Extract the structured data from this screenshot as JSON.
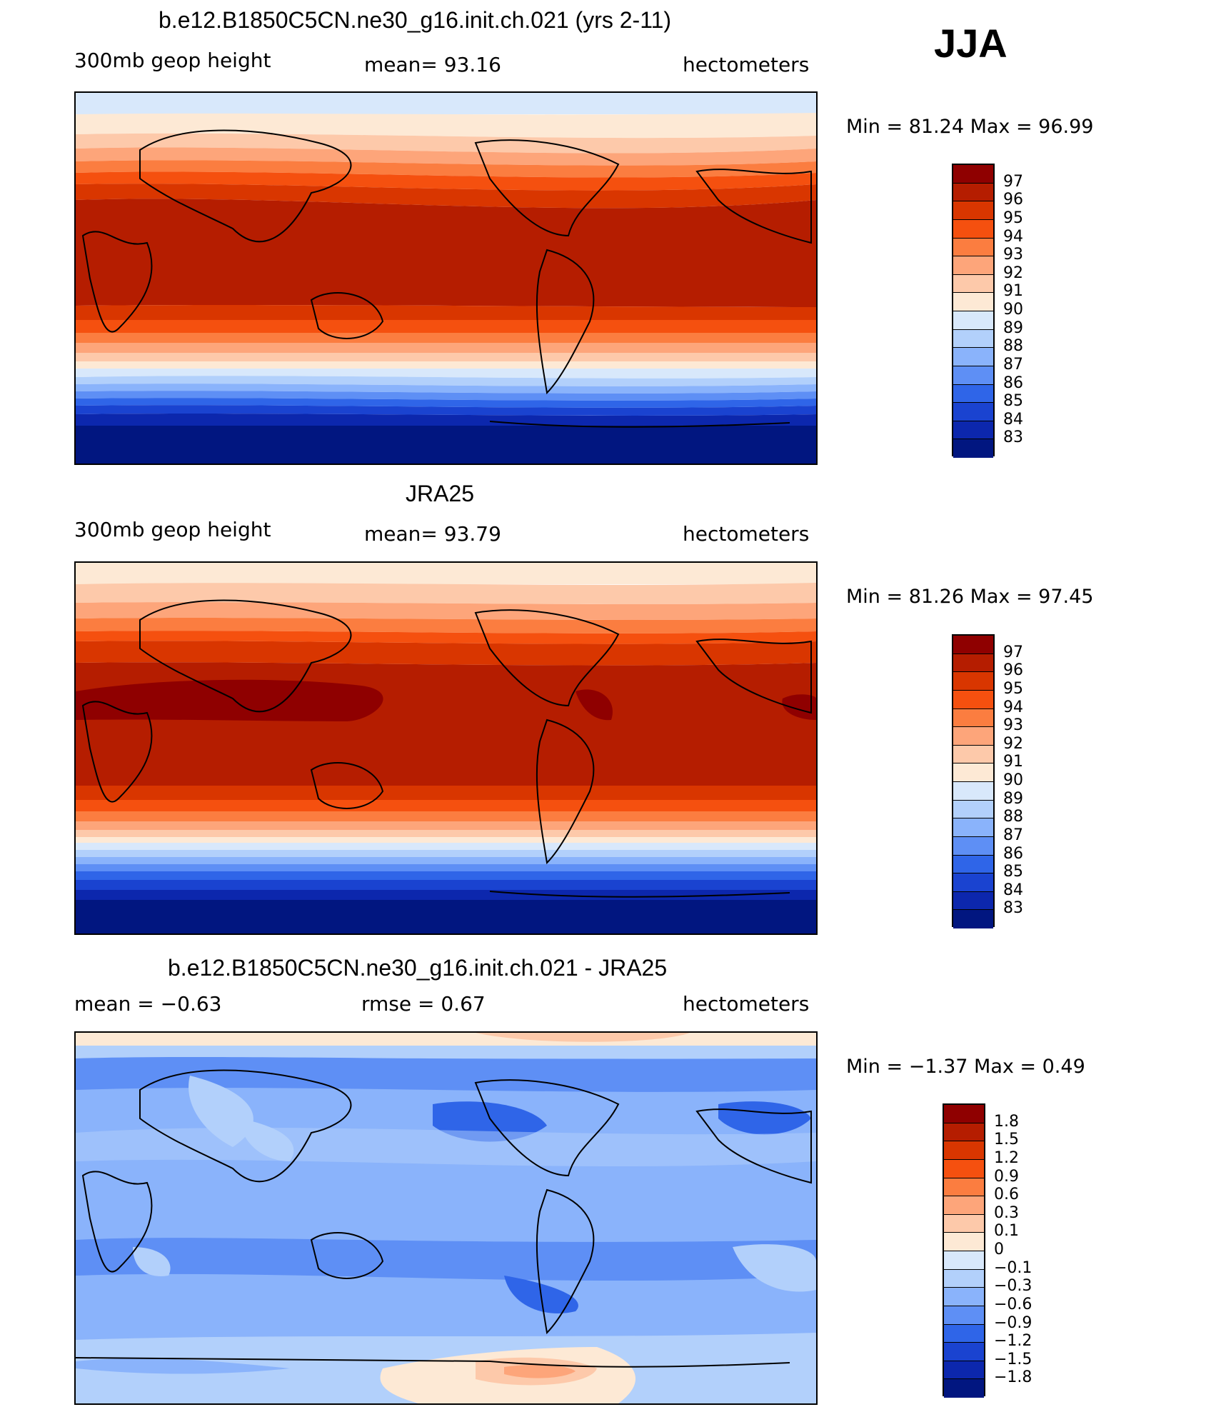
{
  "season": "JJA",
  "panels": [
    {
      "title": "b.e12.B1850C5CN.ne30_g16.init.ch.021 (yrs 2-11)",
      "variable": "300mb geop height",
      "mean_text": "mean=   93.16",
      "units": "hectometers",
      "minmax_text": "Min =   81.24 Max =   96.99",
      "colorbar_labels": [
        "97",
        "96",
        "95",
        "94",
        "93",
        "92",
        "91",
        "90",
        "89",
        "88",
        "87",
        "86",
        "85",
        "84",
        "83"
      ],
      "colorbar_colors": [
        "#8f0000",
        "#b51d00",
        "#d93600",
        "#f5500f",
        "#fb7d40",
        "#fda57a",
        "#fdc9aa",
        "#fde9d5",
        "#d8e8fb",
        "#b2d0fb",
        "#8ab3fb",
        "#5e8ff5",
        "#2f65e8",
        "#1a43d0",
        "#0c27ad",
        "#011680"
      ]
    },
    {
      "title": "JRA25",
      "variable": "300mb geop height",
      "mean_text": "mean=   93.79",
      "units": "hectometers",
      "minmax_text": "Min =   81.26 Max =   97.45",
      "colorbar_labels": [
        "97",
        "96",
        "95",
        "94",
        "93",
        "92",
        "91",
        "90",
        "89",
        "88",
        "87",
        "86",
        "85",
        "84",
        "83"
      ],
      "colorbar_colors": [
        "#8f0000",
        "#b51d00",
        "#d93600",
        "#f5500f",
        "#fb7d40",
        "#fda57a",
        "#fdc9aa",
        "#fde9d5",
        "#d8e8fb",
        "#b2d0fb",
        "#8ab3fb",
        "#5e8ff5",
        "#2f65e8",
        "#1a43d0",
        "#0c27ad",
        "#011680"
      ]
    },
    {
      "title": "b.e12.B1850C5CN.ne30_g16.init.ch.021 - JRA25",
      "mean_text": "mean =   −0.63",
      "rmse_text": "rmse =    0.67",
      "units": "hectometers",
      "minmax_text": "Min =  −1.37 Max =    0.49",
      "colorbar_labels": [
        "1.8",
        "1.5",
        "1.2",
        "0.9",
        "0.6",
        "0.3",
        "0.1",
        "0",
        "−0.1",
        "−0.3",
        "−0.6",
        "−0.9",
        "−1.2",
        "−1.5",
        "−1.8"
      ],
      "colorbar_colors": [
        "#8f0000",
        "#b51d00",
        "#d93600",
        "#f5500f",
        "#fb7d40",
        "#fda57a",
        "#fdc9aa",
        "#fde9d5",
        "#d8e8fb",
        "#b2d0fb",
        "#8ab3fb",
        "#5e8ff5",
        "#2f65e8",
        "#1a43d0",
        "#0c27ad",
        "#011680"
      ]
    }
  ]
}
